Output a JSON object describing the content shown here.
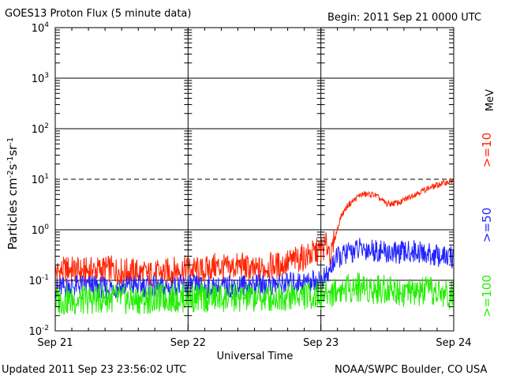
{
  "header": {
    "title": "GOES13 Proton Flux (5 minute data)",
    "begin": "Begin: 2011 Sep 21 0000 UTC"
  },
  "footer": {
    "updated": "Updated 2011 Sep 23 23:56:02 UTC",
    "credit": "NOAA/SWPC Boulder, CO USA"
  },
  "chart_data": {
    "type": "line",
    "title": "GOES13 Proton Flux (5 minute data)",
    "xlabel": "Universal Time",
    "ylabel": "Particles cm⁻²s⁻¹sr⁻¹",
    "y_scale": "log",
    "ylim": [
      0.01,
      10000
    ],
    "xlim": [
      0,
      3
    ],
    "x_ticks": [
      "Sep 21",
      "Sep 22",
      "Sep 23",
      "Sep 24"
    ],
    "y_ticks": [
      {
        "base": "10",
        "exp": "-2",
        "value": 0.01
      },
      {
        "base": "10",
        "exp": "-1",
        "value": 0.1
      },
      {
        "base": "10",
        "exp": "0",
        "value": 1
      },
      {
        "base": "10",
        "exp": "1",
        "value": 10
      },
      {
        "base": "10",
        "exp": "2",
        "value": 100
      },
      {
        "base": "10",
        "exp": "3",
        "value": 1000
      },
      {
        "base": "10",
        "exp": "4",
        "value": 10000
      }
    ],
    "threshold_dashed": 10,
    "unit_label": "MeV",
    "series": [
      {
        "name": ">=10",
        "color": "#ff2200",
        "x": [
          0,
          0.1,
          0.2,
          0.3,
          0.4,
          0.5,
          0.6,
          0.7,
          0.8,
          0.9,
          1.0,
          1.1,
          1.2,
          1.3,
          1.4,
          1.5,
          1.6,
          1.7,
          1.8,
          1.9,
          2.0,
          2.05,
          2.08,
          2.1,
          2.15,
          2.2,
          2.3,
          2.4,
          2.5,
          2.6,
          2.7,
          2.8,
          2.9,
          3.0
        ],
        "values": [
          0.14,
          0.17,
          0.15,
          0.16,
          0.17,
          0.15,
          0.15,
          0.13,
          0.14,
          0.16,
          0.17,
          0.15,
          0.19,
          0.17,
          0.2,
          0.15,
          0.19,
          0.2,
          0.25,
          0.3,
          0.4,
          0.5,
          0.3,
          0.6,
          1.8,
          3.0,
          5.0,
          5.0,
          3.2,
          3.5,
          5.0,
          6.5,
          8.0,
          9.5
        ]
      },
      {
        "name": ">=50",
        "color": "#2222ff",
        "x": [
          0,
          0.2,
          0.4,
          0.6,
          0.8,
          1.0,
          1.2,
          1.4,
          1.6,
          1.8,
          2.0,
          2.05,
          2.1,
          2.2,
          2.3,
          2.4,
          2.5,
          2.6,
          2.7,
          2.8,
          2.9,
          3.0
        ],
        "values": [
          0.07,
          0.08,
          0.07,
          0.08,
          0.07,
          0.08,
          0.07,
          0.08,
          0.08,
          0.09,
          0.1,
          0.12,
          0.25,
          0.35,
          0.42,
          0.4,
          0.35,
          0.35,
          0.38,
          0.33,
          0.3,
          0.28
        ]
      },
      {
        "name": ">=100",
        "color": "#22ee00",
        "x": [
          0,
          0.2,
          0.4,
          0.6,
          0.8,
          1.0,
          1.2,
          1.4,
          1.6,
          1.8,
          2.0,
          2.1,
          2.2,
          2.3,
          2.4,
          2.5,
          2.6,
          2.7,
          2.8,
          2.9,
          3.0
        ],
        "values": [
          0.04,
          0.04,
          0.045,
          0.04,
          0.045,
          0.045,
          0.045,
          0.045,
          0.045,
          0.05,
          0.05,
          0.06,
          0.07,
          0.075,
          0.065,
          0.07,
          0.06,
          0.055,
          0.06,
          0.055,
          0.05
        ]
      }
    ],
    "legend_placement": "right"
  }
}
